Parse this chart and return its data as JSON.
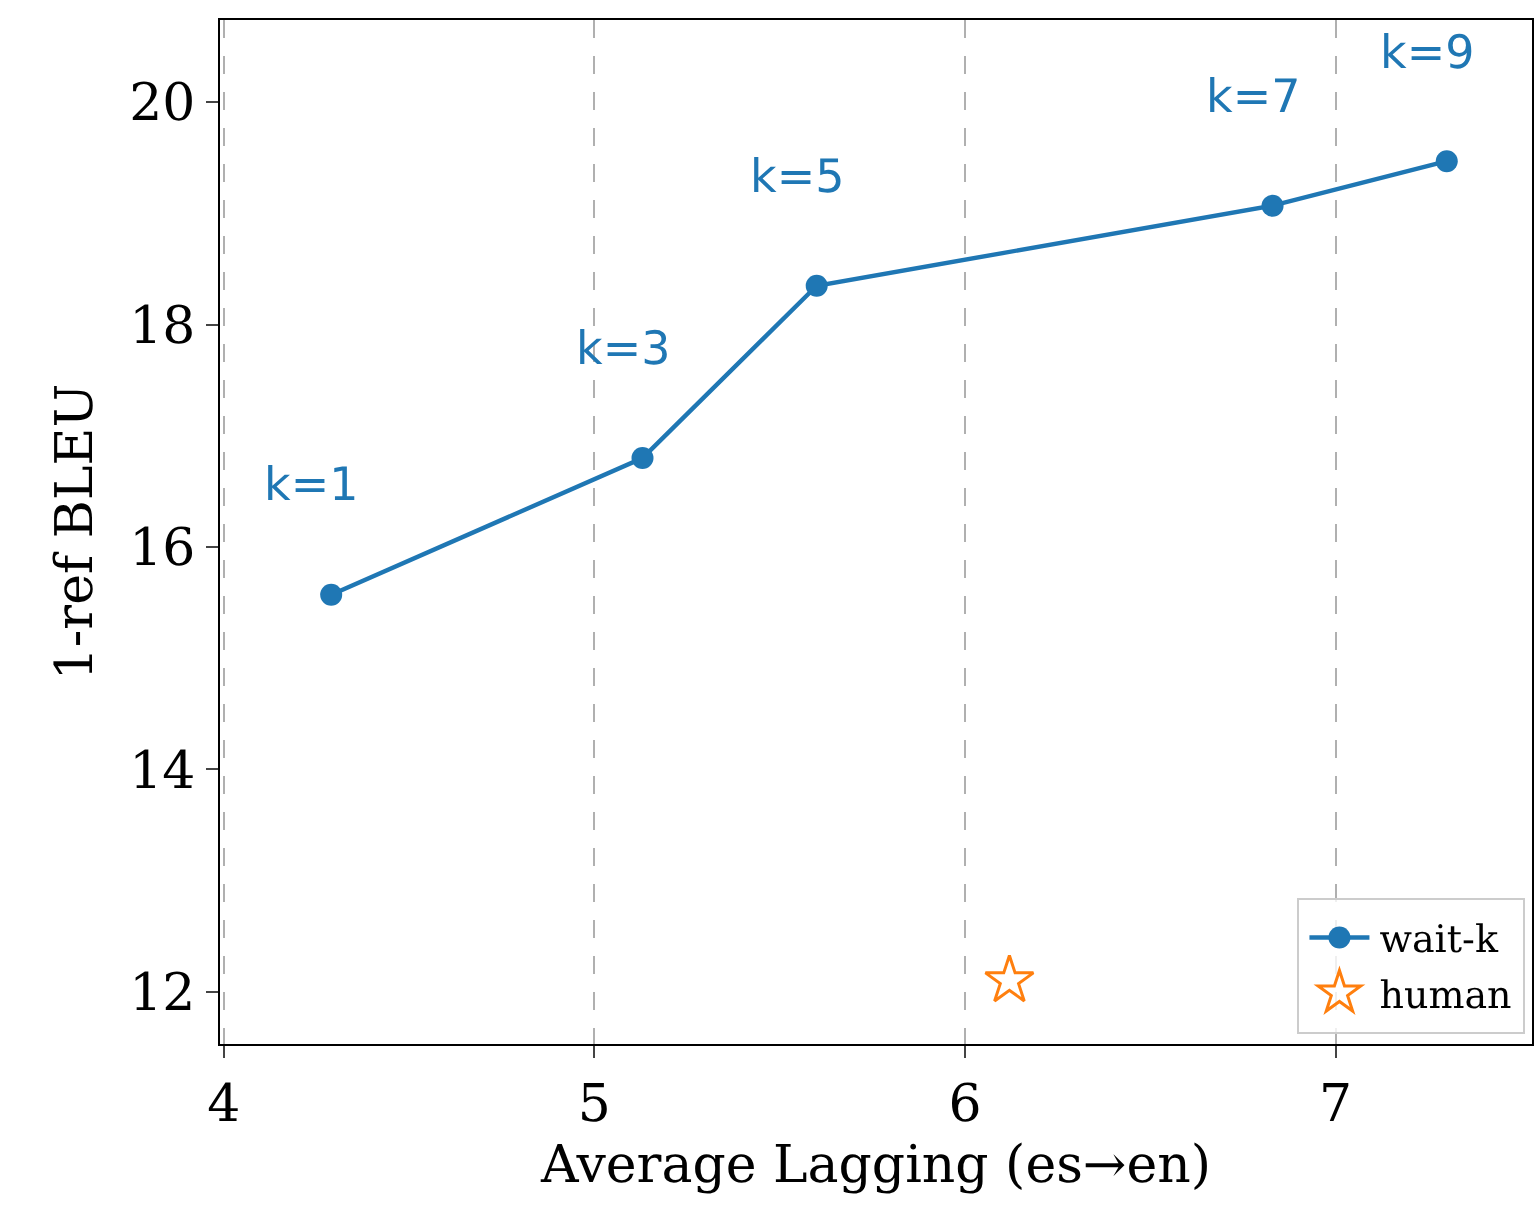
{
  "chart_data": {
    "type": "line",
    "xlabel": "Average Lagging (es→en)",
    "ylabel": "1-ref BLEU",
    "xlim": [
      3.99,
      7.53
    ],
    "xticks": [
      4,
      5,
      6,
      7
    ],
    "ylim": [
      11.53,
      20.74
    ],
    "yticks": [
      12,
      14,
      16,
      18,
      20
    ],
    "grid": "x",
    "legend": "bottom right",
    "line_style": "solid",
    "series": [
      {
        "name": "wait-k",
        "marker": "circle",
        "color": "#1f77b4",
        "x": [
          4.29,
          5.13,
          5.6,
          6.83,
          7.3
        ],
        "values": [
          15.57,
          16.8,
          18.35,
          19.07,
          19.47
        ]
      },
      {
        "name": "human",
        "type": "scatter",
        "marker": "star",
        "color": "#ff7f0e",
        "x": [
          6.12
        ],
        "values": [
          12.1
        ]
      }
    ],
    "annotations": [
      {
        "text": "k=1",
        "x": 4.29,
        "y": 15.57
      },
      {
        "text": "k=3",
        "x": 5.13,
        "y": 16.8
      },
      {
        "text": "k=5",
        "x": 5.6,
        "y": 18.35
      },
      {
        "text": "k=7",
        "x": 6.83,
        "y": 19.07
      },
      {
        "text": "k=9",
        "x": 7.3,
        "y": 19.47
      }
    ]
  }
}
